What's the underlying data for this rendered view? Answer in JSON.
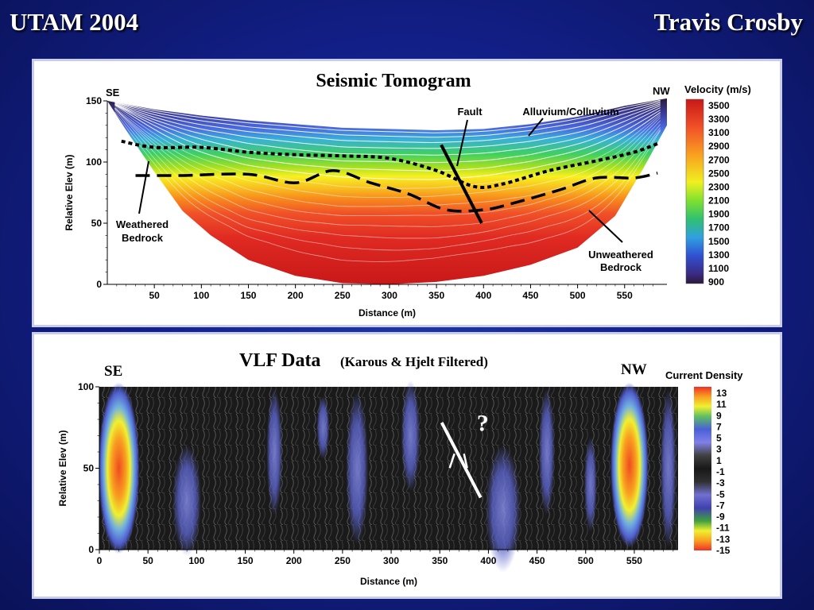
{
  "header": {
    "left": "UTAM 2004",
    "right": "Travis Crosby"
  },
  "chart_data": [
    {
      "type": "heatmap",
      "title": "Seismic Tomogram",
      "xlabel": "Distance (m)",
      "ylabel": "Relative Elev (m)",
      "xlim": [
        0,
        595
      ],
      "ylim": [
        0,
        150
      ],
      "xticks": [
        50,
        100,
        150,
        200,
        250,
        300,
        350,
        400,
        450,
        500,
        550
      ],
      "yticks": [
        0,
        50,
        100,
        150
      ],
      "direction_left": "SE",
      "direction_right": "NW",
      "colorbar": {
        "label": "Velocity (m/s)",
        "ticks": [
          3500,
          3300,
          3100,
          2900,
          2700,
          2500,
          2300,
          2100,
          1900,
          1700,
          1500,
          1300,
          1100,
          900
        ],
        "colors": [
          "#2a1a3a",
          "#3a3a9a",
          "#4a6ae0",
          "#39b0d8",
          "#3fd060",
          "#a8e020",
          "#f8f020",
          "#f8c020",
          "#f88a1c",
          "#f05028",
          "#e02a22",
          "#c81818"
        ]
      },
      "annotations": {
        "fault": "Fault",
        "alluvium": "Alluvium/Colluvium",
        "weathered": "Weathered\nBedrock",
        "unweathered": "Unweathered\nBedrock"
      },
      "surface": [
        [
          0,
          150
        ],
        [
          50,
          143
        ],
        [
          100,
          138
        ],
        [
          150,
          134
        ],
        [
          200,
          131
        ],
        [
          250,
          128
        ],
        [
          300,
          127
        ],
        [
          350,
          126
        ],
        [
          400,
          127
        ],
        [
          450,
          131
        ],
        [
          500,
          137
        ],
        [
          550,
          146
        ],
        [
          595,
          152
        ]
      ],
      "bottom": [
        [
          0,
          150
        ],
        [
          20,
          126
        ],
        [
          50,
          92
        ],
        [
          80,
          60
        ],
        [
          110,
          40
        ],
        [
          150,
          20
        ],
        [
          200,
          7
        ],
        [
          250,
          1
        ],
        [
          300,
          0
        ],
        [
          350,
          2
        ],
        [
          400,
          7
        ],
        [
          450,
          16
        ],
        [
          500,
          30
        ],
        [
          540,
          56
        ],
        [
          570,
          95
        ],
        [
          595,
          130
        ]
      ],
      "weathered_boundary": [
        [
          15,
          117
        ],
        [
          50,
          112
        ],
        [
          100,
          112
        ],
        [
          150,
          108
        ],
        [
          200,
          106
        ],
        [
          250,
          105
        ],
        [
          300,
          103
        ],
        [
          350,
          93
        ],
        [
          390,
          80
        ],
        [
          420,
          82
        ],
        [
          470,
          93
        ],
        [
          520,
          101
        ],
        [
          560,
          108
        ],
        [
          585,
          115
        ]
      ],
      "unweathered_boundary": [
        [
          30,
          89
        ],
        [
          80,
          89
        ],
        [
          150,
          90
        ],
        [
          200,
          83
        ],
        [
          240,
          93
        ],
        [
          280,
          83
        ],
        [
          320,
          74
        ],
        [
          360,
          61
        ],
        [
          400,
          61
        ],
        [
          430,
          66
        ],
        [
          480,
          77
        ],
        [
          520,
          87
        ],
        [
          560,
          87
        ],
        [
          585,
          91
        ]
      ],
      "fault_line": [
        [
          355,
          114
        ],
        [
          398,
          50
        ]
      ]
    },
    {
      "type": "heatmap",
      "title": "VLF Data",
      "subtitle": "(Karous & Hjelt Filtered)",
      "xlabel": "Distance (m)",
      "ylabel": "Relative Elev (m)",
      "xlim": [
        0,
        595
      ],
      "ylim": [
        0,
        100
      ],
      "xticks": [
        0,
        50,
        100,
        150,
        200,
        250,
        300,
        350,
        400,
        450,
        500,
        550
      ],
      "yticks": [
        0,
        50,
        100
      ],
      "direction_left": "SE",
      "direction_right": "NW",
      "colorbar": {
        "label": "Current Density",
        "ticks": [
          13,
          11,
          9,
          7,
          5,
          3,
          1,
          -1,
          -3,
          -5,
          -7,
          -9,
          -11,
          -13,
          -15
        ],
        "colors": [
          "#f03028",
          "#f8a020",
          "#f0f030",
          "#60c060",
          "#4a60d8",
          "#8080e8",
          "#404040",
          "#181818",
          "#303030",
          "#7070d0",
          "#4040b0",
          "#40a040",
          "#f0f030",
          "#f8a020",
          "#f03028"
        ]
      },
      "annotations": {
        "question": "?"
      },
      "fault_line": [
        [
          352,
          78
        ],
        [
          392,
          32
        ]
      ]
    }
  ]
}
